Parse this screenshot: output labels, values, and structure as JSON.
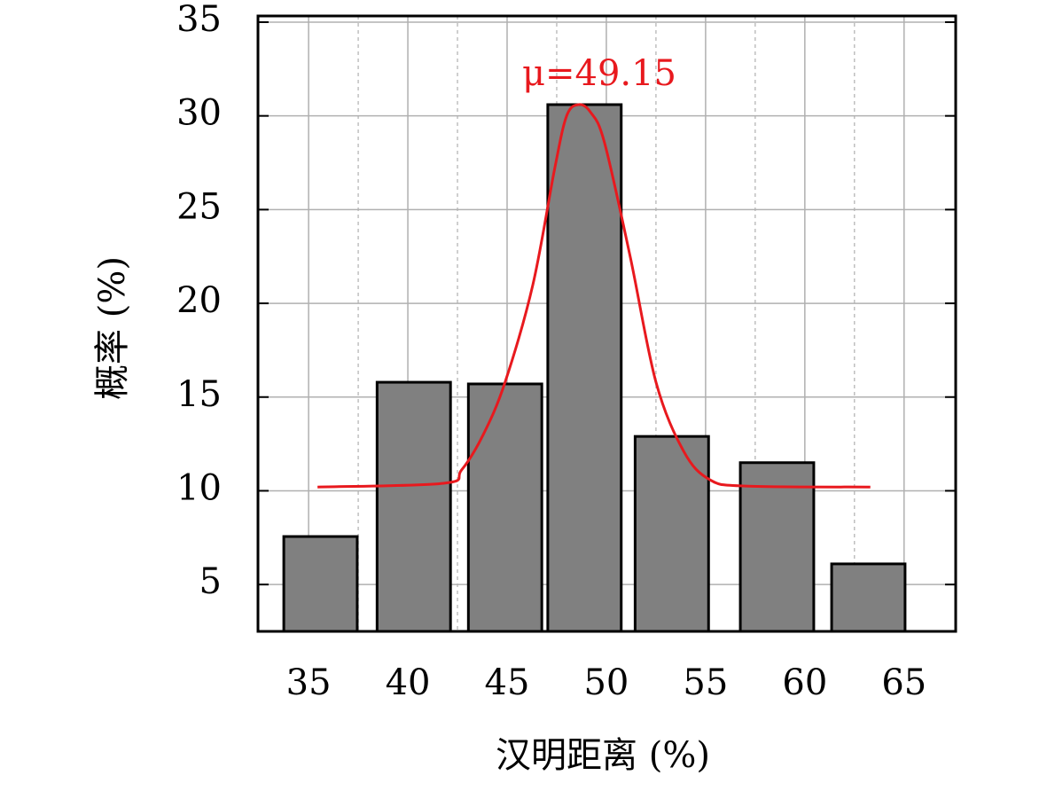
{
  "chart_data": {
    "type": "bar",
    "x_label": "汉明距离 (%)",
    "y_label": "概率 (%)",
    "x": [
      35.6,
      40.3,
      44.9,
      48.9,
      53.3,
      58.6,
      63.2
    ],
    "values": [
      7.56,
      15.79,
      15.7,
      30.6,
      12.9,
      11.5,
      6.1
    ],
    "bar_width": 3.7,
    "color": "#808080",
    "xlim": [
      32.45,
      67.6
    ],
    "ylim": [
      2.5,
      35.33
    ],
    "xticks": [
      35,
      40,
      45,
      50,
      55,
      60,
      65
    ],
    "xminorticks": [
      37.5,
      42.5,
      47.5,
      52.5,
      57.5,
      62.5
    ],
    "yticks": [
      5,
      10,
      15,
      20,
      25,
      30,
      35
    ],
    "grid": true,
    "curve": {
      "color": "#e8191e",
      "x": [
        35.45,
        41.8,
        42.7,
        43.8,
        44.9,
        46.3,
        47.4,
        48.0,
        48.6,
        49.2,
        49.9,
        51.2,
        52.5,
        53.9,
        55.2,
        57.0,
        63.3
      ],
      "values": [
        10.2,
        10.4,
        11.1,
        13.0,
        15.8,
        21.0,
        27.2,
        30.0,
        30.6,
        30.2,
        28.6,
        22.5,
        15.8,
        12.1,
        10.6,
        10.25,
        10.2
      ]
    },
    "annotation": "μ=49.15"
  }
}
